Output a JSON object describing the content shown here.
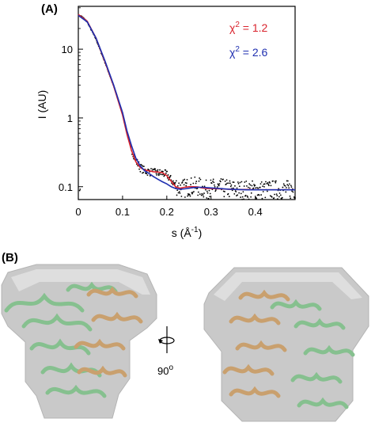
{
  "panels": {
    "a_label": "(A)",
    "b_label": "(B)"
  },
  "colors": {
    "fit_red": "#d9232d",
    "fit_blue": "#1f2fb0",
    "data_points": "#000000",
    "helix_green": "#86c08f",
    "helix_tan": "#c9a06e",
    "envelope": "#c9c9c9"
  },
  "chart_data": {
    "type": "scatter",
    "title": "",
    "xlabel_main": "s (Å",
    "xlabel_sup": "-1",
    "xlabel_close": ")",
    "ylabel": "I (AU)",
    "xlim": [
      0,
      0.49
    ],
    "ylim": [
      0.065,
      42
    ],
    "y_scale": "log",
    "x_ticks": [
      0,
      0.1,
      0.2,
      0.3,
      0.4
    ],
    "x_tick_labels": [
      "0",
      "0.1",
      "0.2",
      "0.3",
      "0.4"
    ],
    "y_ticks": [
      0.1,
      1,
      10
    ],
    "y_tick_labels": [
      "0.1",
      "1",
      "10"
    ],
    "annotations": [
      {
        "text_main": "χ",
        "sup": "2",
        "text_rest": " = 1.2",
        "color": "red"
      },
      {
        "text_main": "χ",
        "sup": "2",
        "text_rest": " = 2.6",
        "color": "blue"
      }
    ],
    "series": [
      {
        "kind": "points",
        "x": [
          0.005,
          0.02,
          0.04,
          0.06,
          0.08,
          0.1,
          0.11,
          0.12,
          0.13,
          0.14,
          0.15,
          0.16,
          0.17,
          0.18,
          0.19,
          0.2,
          0.21,
          0.22,
          0.23,
          0.24,
          0.25,
          0.26,
          0.27,
          0.28,
          0.29,
          0.3,
          0.32,
          0.34,
          0.36,
          0.38,
          0.4,
          0.42,
          0.44,
          0.46,
          0.48,
          0.49
        ],
        "y": [
          31,
          25,
          14,
          6.5,
          2.9,
          1.15,
          0.6,
          0.36,
          0.24,
          0.19,
          0.17,
          0.165,
          0.16,
          0.158,
          0.157,
          0.15,
          0.125,
          0.105,
          0.095,
          0.095,
          0.1,
          0.1,
          0.1,
          0.095,
          0.09,
          0.095,
          0.095,
          0.093,
          0.09,
          0.09,
          0.09,
          0.09,
          0.09,
          0.09,
          0.09,
          0.09
        ]
      },
      {
        "kind": "line",
        "color": "red",
        "x": [
          0.0,
          0.02,
          0.04,
          0.06,
          0.08,
          0.1,
          0.11,
          0.12,
          0.13,
          0.14,
          0.15,
          0.16,
          0.17,
          0.18,
          0.19,
          0.2,
          0.21,
          0.22,
          0.23,
          0.24,
          0.25,
          0.26,
          0.27,
          0.28,
          0.29,
          0.3,
          0.32,
          0.34,
          0.36,
          0.38,
          0.4,
          0.42,
          0.44,
          0.46,
          0.49
        ],
        "y": [
          32,
          25.5,
          14.5,
          6.6,
          2.9,
          1.1,
          0.58,
          0.34,
          0.23,
          0.19,
          0.175,
          0.17,
          0.165,
          0.163,
          0.16,
          0.145,
          0.12,
          0.1,
          0.095,
          0.098,
          0.1,
          0.1,
          0.099,
          0.096,
          0.094,
          0.094,
          0.093,
          0.092,
          0.091,
          0.091,
          0.09,
          0.09,
          0.09,
          0.09,
          0.09
        ]
      },
      {
        "kind": "line",
        "color": "blue",
        "x": [
          0.0,
          0.02,
          0.04,
          0.06,
          0.08,
          0.1,
          0.11,
          0.12,
          0.13,
          0.14,
          0.15,
          0.16,
          0.17,
          0.18,
          0.19,
          0.2,
          0.21,
          0.22,
          0.23,
          0.24,
          0.25,
          0.26,
          0.27,
          0.28,
          0.29,
          0.3,
          0.32,
          0.34,
          0.36,
          0.38,
          0.4,
          0.42,
          0.44,
          0.46,
          0.49
        ],
        "y": [
          31,
          25,
          14.5,
          6.8,
          3.0,
          1.2,
          0.65,
          0.4,
          0.26,
          0.2,
          0.17,
          0.155,
          0.14,
          0.128,
          0.118,
          0.11,
          0.1,
          0.094,
          0.092,
          0.093,
          0.095,
          0.097,
          0.098,
          0.098,
          0.097,
          0.096,
          0.094,
          0.092,
          0.091,
          0.09,
          0.09,
          0.09,
          0.09,
          0.09,
          0.09
        ]
      }
    ]
  },
  "rotation_label": "90",
  "rotation_sup": "o"
}
